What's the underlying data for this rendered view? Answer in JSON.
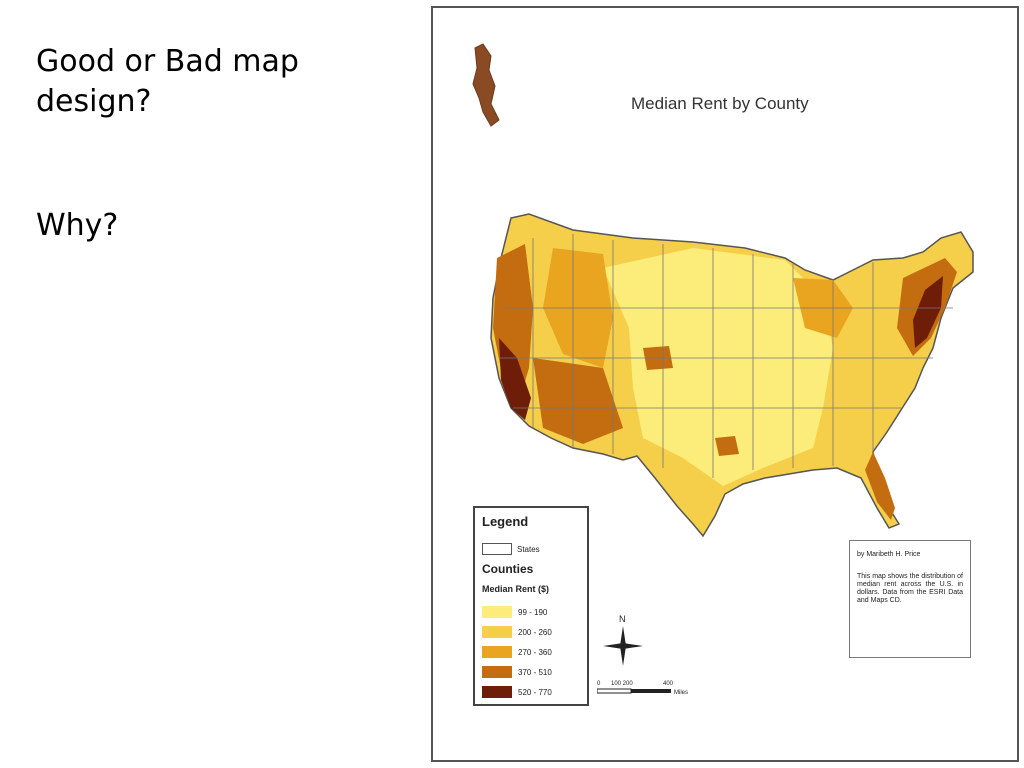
{
  "slide": {
    "question_1": "Good or Bad map design?",
    "question_2": "Why?"
  },
  "map": {
    "title": "Median Rent by County",
    "colors": {
      "class_1": "#fcec7a",
      "class_2": "#f5cf4a",
      "class_3": "#e9a420",
      "class_4": "#c36d10",
      "class_5": "#6e1d08",
      "border": "#555555"
    },
    "legend": {
      "title": "Legend",
      "states_label": "States",
      "counties_label": "Counties",
      "field_label": "Median Rent ($)",
      "classes": [
        {
          "label": "99 - 190",
          "color": "#fcec7a"
        },
        {
          "label": "200 - 260",
          "color": "#f5cf4a"
        },
        {
          "label": "270 - 360",
          "color": "#e9a420"
        },
        {
          "label": "370 - 510",
          "color": "#c36d10"
        },
        {
          "label": "520 - 770",
          "color": "#6e1d08"
        }
      ]
    },
    "credit": {
      "author": "by Maribeth H. Price",
      "description": "This map shows the distribution of median rent across the U.S. in dollars. Data from the ESRI Data and Maps CD."
    },
    "compass": {
      "north_label": "N"
    },
    "scale": {
      "ticks": [
        "0",
        "100 200",
        "400"
      ],
      "unit": "Miles"
    }
  }
}
